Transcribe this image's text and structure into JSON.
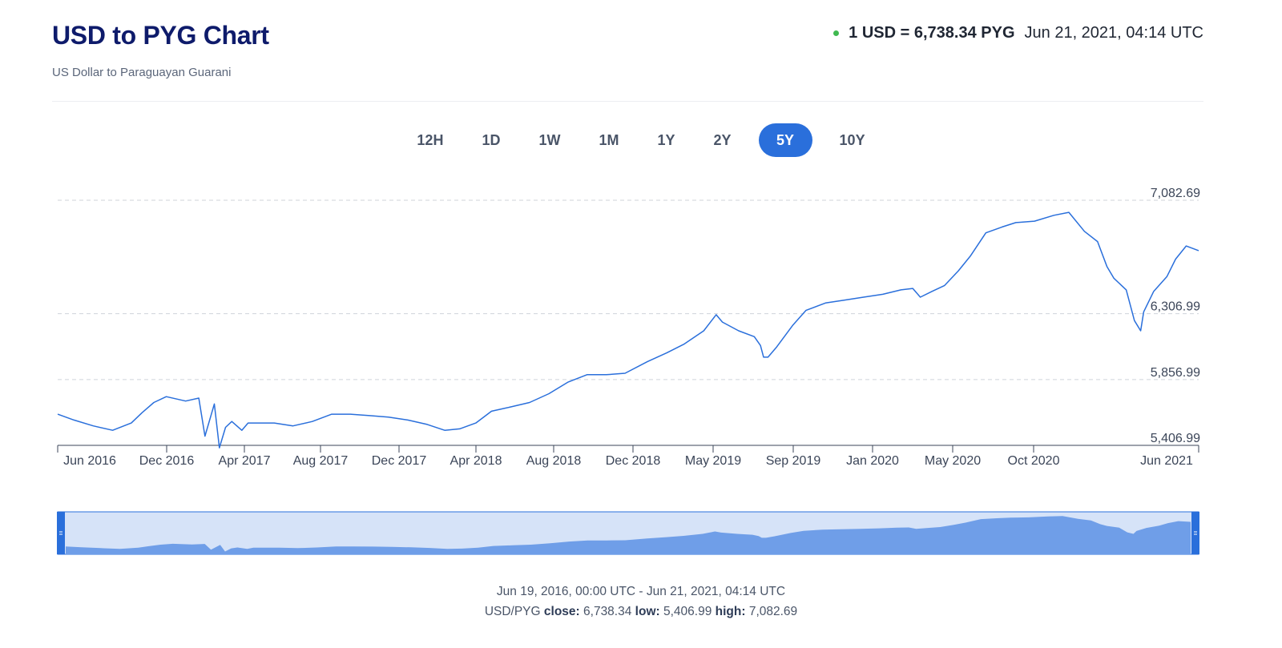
{
  "header": {
    "title": "USD to PYG Chart",
    "subtitle": "US Dollar to Paraguayan Guarani",
    "rate_text": "1 USD = 6,738.34 PYG",
    "timestamp": "Jun 21, 2021, 04:14 UTC",
    "live_dot_color": "#3fb950"
  },
  "ranges": {
    "items": [
      "12H",
      "1D",
      "1W",
      "1M",
      "1Y",
      "2Y",
      "5Y",
      "10Y"
    ],
    "selected": "5Y",
    "accent_color": "#2a6fdb"
  },
  "footer": {
    "range_text": "Jun 19, 2016, 00:00 UTC - Jun 21, 2021, 04:14 UTC",
    "pair": "USD/PYG",
    "close_label": "close:",
    "close_value": "6,738.34",
    "low_label": "low:",
    "low_value": "5,406.99",
    "high_label": "high:",
    "high_value": "7,082.69"
  },
  "chart_data": {
    "type": "line",
    "title": "",
    "xlabel": "",
    "ylabel": "",
    "series_color": "#2a6fdb",
    "y_ticks": [
      {
        "value": 7082.69,
        "label": "7,082.69"
      },
      {
        "value": 6306.99,
        "label": "6,306.99"
      },
      {
        "value": 5856.99,
        "label": "5,856.99"
      },
      {
        "value": 5406.99,
        "label": "5,406.99"
      }
    ],
    "x_ticks": [
      "Jun 2016",
      "Dec 2016",
      "Apr 2017",
      "Aug 2017",
      "Dec 2017",
      "Apr 2018",
      "Aug 2018",
      "Dec 2018",
      "May 2019",
      "Sep 2019",
      "Jan 2020",
      "May 2020",
      "Oct 2020",
      "Jun 2021"
    ],
    "x_range": [
      "2016-06-19",
      "2021-06-21"
    ],
    "ylim": [
      5406.99,
      7082.69
    ],
    "grid": "horizontal dashed",
    "series": [
      {
        "x": [
          "2016-06-19",
          "2016-07-15",
          "2016-08-15",
          "2016-09-15",
          "2016-10-15",
          "2016-11-01",
          "2016-11-20",
          "2016-12-10",
          "2017-01-10",
          "2017-01-31",
          "2017-02-10",
          "2017-02-25",
          "2017-03-05",
          "2017-03-15",
          "2017-03-25",
          "2017-04-10",
          "2017-04-20",
          "2017-05-10",
          "2017-06-01",
          "2017-07-01",
          "2017-08-01",
          "2017-09-01",
          "2017-10-01",
          "2017-11-01",
          "2017-12-01",
          "2018-01-01",
          "2018-02-01",
          "2018-03-01",
          "2018-03-25",
          "2018-04-20",
          "2018-05-15",
          "2018-06-15",
          "2018-07-15",
          "2018-08-15",
          "2018-09-15",
          "2018-10-15",
          "2018-11-15",
          "2018-12-15",
          "2019-01-20",
          "2019-02-20",
          "2019-03-20",
          "2019-04-20",
          "2019-05-10",
          "2019-05-20",
          "2019-06-15",
          "2019-07-10",
          "2019-07-20",
          "2019-07-25",
          "2019-08-01",
          "2019-08-15",
          "2019-09-10",
          "2019-10-01",
          "2019-11-01",
          "2019-12-01",
          "2020-01-01",
          "2020-02-01",
          "2020-03-01",
          "2020-03-20",
          "2020-04-01",
          "2020-04-20",
          "2020-05-10",
          "2020-06-01",
          "2020-06-20",
          "2020-07-15",
          "2020-08-10",
          "2020-09-01",
          "2020-10-01",
          "2020-11-01",
          "2020-11-25",
          "2020-12-20",
          "2021-01-10",
          "2021-01-25",
          "2021-02-05",
          "2021-02-25",
          "2021-03-10",
          "2021-03-20",
          "2021-03-25",
          "2021-04-10",
          "2021-05-01",
          "2021-05-15",
          "2021-06-01",
          "2021-06-21"
        ],
        "y": [
          5620,
          5580,
          5540,
          5510,
          5560,
          5630,
          5700,
          5740,
          5710,
          5730,
          5470,
          5690,
          5390,
          5530,
          5570,
          5510,
          5560,
          5560,
          5560,
          5540,
          5570,
          5620,
          5620,
          5610,
          5600,
          5580,
          5550,
          5510,
          5520,
          5560,
          5640,
          5670,
          5700,
          5760,
          5840,
          5890,
          5890,
          5900,
          5980,
          6040,
          6100,
          6190,
          6300,
          6250,
          6190,
          6150,
          6090,
          6010,
          6010,
          6080,
          6230,
          6330,
          6380,
          6400,
          6420,
          6440,
          6470,
          6480,
          6420,
          6460,
          6500,
          6600,
          6700,
          6860,
          6900,
          6930,
          6940,
          6980,
          7000,
          6870,
          6800,
          6630,
          6550,
          6470,
          6260,
          6190,
          6320,
          6460,
          6560,
          6680,
          6770,
          6738
        ]
      }
    ]
  }
}
